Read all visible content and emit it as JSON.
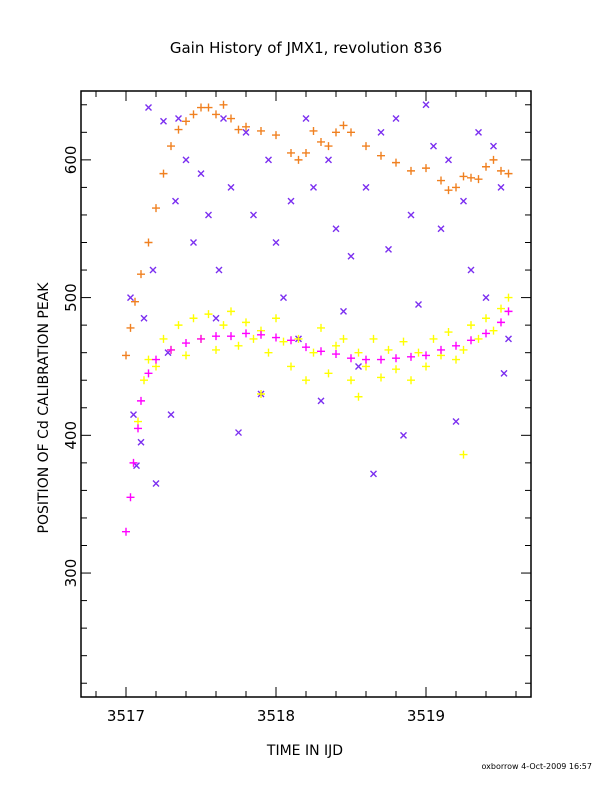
{
  "chart_data": {
    "type": "scatter",
    "title": "Gain History of JMX1, revolution 836",
    "xlabel": "TIME IN IJD",
    "ylabel": "POSITION OF Cd CALIBRATION PEAK",
    "xlim": [
      3516.7,
      3519.7
    ],
    "ylim": [
      210,
      650
    ],
    "xticks": [
      3517,
      3518,
      3519
    ],
    "yticks": [
      300,
      400,
      500,
      600
    ],
    "grid": false,
    "colors": {
      "orange_trend": "#f08020",
      "purple_points": "#7b2ff0",
      "yellow_points": "#ffff00",
      "magenta_trend": "#ff00ff"
    },
    "series": [
      {
        "marker": "+",
        "color": "#f08020",
        "points": [
          [
            3517.0,
            458
          ],
          [
            3517.03,
            478
          ],
          [
            3517.06,
            497
          ],
          [
            3517.1,
            517
          ],
          [
            3517.15,
            540
          ],
          [
            3517.2,
            565
          ],
          [
            3517.25,
            590
          ],
          [
            3517.3,
            610
          ],
          [
            3517.35,
            622
          ],
          [
            3517.4,
            628
          ],
          [
            3517.45,
            633
          ],
          [
            3517.5,
            638
          ],
          [
            3517.55,
            638
          ],
          [
            3517.6,
            633
          ],
          [
            3517.65,
            640
          ],
          [
            3517.7,
            630
          ],
          [
            3517.75,
            622
          ],
          [
            3517.8,
            624
          ],
          [
            3517.9,
            621
          ],
          [
            3518.0,
            618
          ],
          [
            3518.1,
            605
          ],
          [
            3518.15,
            600
          ],
          [
            3518.2,
            605
          ],
          [
            3518.25,
            621
          ],
          [
            3518.3,
            613
          ],
          [
            3518.35,
            610
          ],
          [
            3518.4,
            620
          ],
          [
            3518.45,
            625
          ],
          [
            3518.5,
            620
          ],
          [
            3518.6,
            610
          ],
          [
            3518.7,
            603
          ],
          [
            3518.8,
            598
          ],
          [
            3518.9,
            592
          ],
          [
            3519.0,
            594
          ],
          [
            3519.1,
            585
          ],
          [
            3519.15,
            578
          ],
          [
            3519.2,
            580
          ],
          [
            3519.25,
            588
          ],
          [
            3519.3,
            587
          ],
          [
            3519.35,
            586
          ],
          [
            3519.4,
            595
          ],
          [
            3519.45,
            600
          ],
          [
            3519.5,
            592
          ],
          [
            3519.55,
            590
          ]
        ]
      },
      {
        "marker": "x",
        "color": "#7b2ff0",
        "points": [
          [
            3517.03,
            500
          ],
          [
            3517.05,
            415
          ],
          [
            3517.07,
            378
          ],
          [
            3517.1,
            395
          ],
          [
            3517.12,
            485
          ],
          [
            3517.15,
            638
          ],
          [
            3517.18,
            520
          ],
          [
            3517.2,
            365
          ],
          [
            3517.25,
            628
          ],
          [
            3517.28,
            460
          ],
          [
            3517.3,
            415
          ],
          [
            3517.33,
            570
          ],
          [
            3517.35,
            630
          ],
          [
            3517.4,
            600
          ],
          [
            3517.45,
            540
          ],
          [
            3517.5,
            590
          ],
          [
            3517.55,
            560
          ],
          [
            3517.6,
            485
          ],
          [
            3517.62,
            520
          ],
          [
            3517.65,
            630
          ],
          [
            3517.7,
            580
          ],
          [
            3517.75,
            402
          ],
          [
            3517.8,
            620
          ],
          [
            3517.85,
            560
          ],
          [
            3517.9,
            430
          ],
          [
            3517.95,
            600
          ],
          [
            3518.0,
            540
          ],
          [
            3518.05,
            500
          ],
          [
            3518.1,
            570
          ],
          [
            3518.15,
            470
          ],
          [
            3518.2,
            630
          ],
          [
            3518.25,
            580
          ],
          [
            3518.3,
            425
          ],
          [
            3518.35,
            600
          ],
          [
            3518.4,
            550
          ],
          [
            3518.45,
            490
          ],
          [
            3518.5,
            530
          ],
          [
            3518.55,
            450
          ],
          [
            3518.6,
            580
          ],
          [
            3518.65,
            372
          ],
          [
            3518.7,
            620
          ],
          [
            3518.75,
            535
          ],
          [
            3518.8,
            630
          ],
          [
            3518.85,
            400
          ],
          [
            3518.9,
            560
          ],
          [
            3518.95,
            495
          ],
          [
            3519.0,
            640
          ],
          [
            3519.05,
            610
          ],
          [
            3519.1,
            550
          ],
          [
            3519.15,
            600
          ],
          [
            3519.2,
            410
          ],
          [
            3519.25,
            570
          ],
          [
            3519.3,
            520
          ],
          [
            3519.35,
            620
          ],
          [
            3519.4,
            500
          ],
          [
            3519.45,
            610
          ],
          [
            3519.5,
            580
          ],
          [
            3519.55,
            470
          ],
          [
            3519.52,
            445
          ]
        ]
      },
      {
        "marker": "+",
        "color": "#ffff00",
        "points": [
          [
            3517.08,
            410
          ],
          [
            3517.12,
            440
          ],
          [
            3517.15,
            455
          ],
          [
            3517.2,
            450
          ],
          [
            3517.25,
            470
          ],
          [
            3517.3,
            462
          ],
          [
            3517.35,
            480
          ],
          [
            3517.4,
            458
          ],
          [
            3517.45,
            485
          ],
          [
            3517.5,
            470
          ],
          [
            3517.55,
            488
          ],
          [
            3517.6,
            462
          ],
          [
            3517.65,
            480
          ],
          [
            3517.7,
            490
          ],
          [
            3517.75,
            465
          ],
          [
            3517.8,
            482
          ],
          [
            3517.85,
            470
          ],
          [
            3517.9,
            476
          ],
          [
            3517.95,
            460
          ],
          [
            3518.0,
            485
          ],
          [
            3518.05,
            468
          ],
          [
            3518.1,
            450
          ],
          [
            3518.15,
            470
          ],
          [
            3518.2,
            440
          ],
          [
            3518.25,
            460
          ],
          [
            3518.3,
            478
          ],
          [
            3518.35,
            445
          ],
          [
            3518.4,
            465
          ],
          [
            3518.45,
            470
          ],
          [
            3518.5,
            440
          ],
          [
            3518.55,
            460
          ],
          [
            3518.6,
            450
          ],
          [
            3518.65,
            470
          ],
          [
            3518.7,
            442
          ],
          [
            3518.75,
            462
          ],
          [
            3518.8,
            448
          ],
          [
            3518.85,
            468
          ],
          [
            3518.9,
            440
          ],
          [
            3518.95,
            460
          ],
          [
            3519.0,
            450
          ],
          [
            3519.05,
            470
          ],
          [
            3519.1,
            458
          ],
          [
            3519.15,
            475
          ],
          [
            3519.2,
            455
          ],
          [
            3519.25,
            462
          ],
          [
            3519.3,
            480
          ],
          [
            3519.35,
            470
          ],
          [
            3519.4,
            485
          ],
          [
            3519.45,
            476
          ],
          [
            3519.5,
            492
          ],
          [
            3519.55,
            500
          ],
          [
            3519.25,
            386
          ],
          [
            3518.55,
            428
          ],
          [
            3517.9,
            430
          ]
        ]
      },
      {
        "marker": "+",
        "color": "#ff00ff",
        "points": [
          [
            3517.0,
            330
          ],
          [
            3517.03,
            355
          ],
          [
            3517.05,
            380
          ],
          [
            3517.08,
            405
          ],
          [
            3517.1,
            425
          ],
          [
            3517.15,
            445
          ],
          [
            3517.2,
            455
          ],
          [
            3517.3,
            462
          ],
          [
            3517.4,
            467
          ],
          [
            3517.5,
            470
          ],
          [
            3517.6,
            472
          ],
          [
            3517.7,
            472
          ],
          [
            3517.8,
            474
          ],
          [
            3517.9,
            473
          ],
          [
            3518.0,
            471
          ],
          [
            3518.1,
            469
          ],
          [
            3518.2,
            464
          ],
          [
            3518.3,
            461
          ],
          [
            3518.4,
            459
          ],
          [
            3518.5,
            456
          ],
          [
            3518.6,
            455
          ],
          [
            3518.7,
            455
          ],
          [
            3518.8,
            456
          ],
          [
            3518.9,
            457
          ],
          [
            3519.0,
            458
          ],
          [
            3519.1,
            462
          ],
          [
            3519.2,
            465
          ],
          [
            3519.3,
            469
          ],
          [
            3519.4,
            474
          ],
          [
            3519.5,
            482
          ],
          [
            3519.55,
            490
          ]
        ]
      }
    ]
  },
  "footer": {
    "credit": "oxborrow  4-Oct-2009 16:57"
  }
}
